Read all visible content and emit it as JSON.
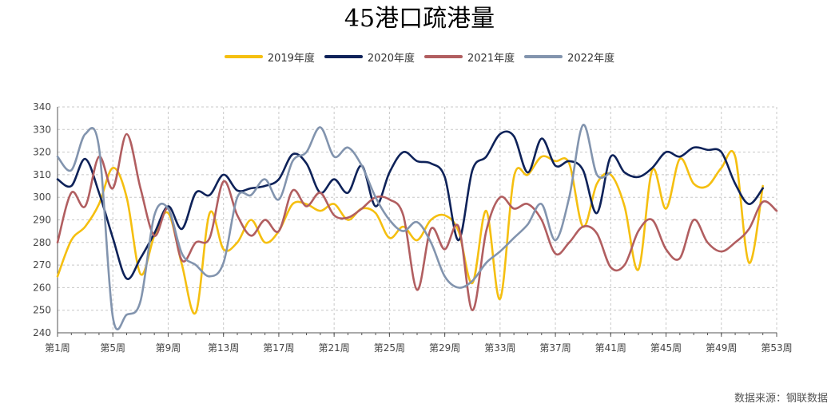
{
  "title": "45港口疏港量",
  "source": "数据来源：钢联数据",
  "colors": {
    "2019": "#F5BF10",
    "2020": "#0E2259",
    "2021": "#B15E60",
    "2022": "#8294AE",
    "grid": "#C8C8C8",
    "axis": "#555555"
  },
  "chart_data": {
    "type": "line",
    "title": "45港口疏港量",
    "xlabel": "",
    "ylabel": "",
    "ylim": [
      240,
      340
    ],
    "yticks": [
      240,
      250,
      260,
      270,
      280,
      290,
      300,
      310,
      320,
      330,
      340
    ],
    "xlim": [
      1,
      53
    ],
    "xtick_labels": [
      "第1周",
      "第5周",
      "第9周",
      "第13周",
      "第17周",
      "第21周",
      "第25周",
      "第29周",
      "第33周",
      "第37周",
      "第41周",
      "第45周",
      "第49周",
      "第53周"
    ],
    "xticks": [
      1,
      5,
      9,
      13,
      17,
      21,
      25,
      29,
      33,
      37,
      41,
      45,
      49,
      53
    ],
    "grid": true,
    "legend_position": "top-center",
    "series": [
      {
        "name": "2019年度",
        "color": "#F5BF10",
        "x": [
          1,
          2,
          3,
          4,
          5,
          6,
          7,
          8,
          9,
          10,
          11,
          12,
          13,
          14,
          15,
          16,
          17,
          18,
          19,
          20,
          21,
          22,
          23,
          24,
          25,
          26,
          27,
          28,
          29,
          30,
          31,
          32,
          33,
          34,
          35,
          36,
          37,
          38,
          39,
          40,
          41,
          42,
          43,
          44,
          45,
          46,
          47,
          48,
          49,
          50,
          51,
          52
        ],
        "values": [
          265,
          281,
          287,
          297,
          313,
          300,
          266,
          283,
          293,
          270,
          249,
          293,
          277,
          280,
          290,
          280,
          285,
          297,
          297,
          294,
          297,
          290,
          295,
          293,
          282,
          287,
          281,
          290,
          292,
          285,
          262,
          294,
          255,
          309,
          310,
          318,
          316,
          315,
          287,
          306,
          310,
          296,
          268,
          312,
          295,
          317,
          306,
          305,
          313,
          318,
          271,
          305
        ]
      },
      {
        "name": "2020年度",
        "color": "#0E2259",
        "x": [
          1,
          2,
          3,
          4,
          5,
          6,
          7,
          8,
          9,
          10,
          11,
          12,
          13,
          14,
          15,
          16,
          17,
          18,
          19,
          20,
          21,
          22,
          23,
          24,
          25,
          26,
          27,
          28,
          29,
          30,
          31,
          32,
          33,
          34,
          35,
          36,
          37,
          38,
          39,
          40,
          41,
          42,
          43,
          44,
          45,
          46,
          47,
          48,
          49,
          50,
          51,
          52
        ],
        "values": [
          308,
          305,
          317,
          302,
          282,
          264,
          273,
          284,
          296,
          286,
          302,
          301,
          310,
          303,
          304,
          305,
          308,
          319,
          315,
          302,
          308,
          302,
          314,
          296,
          311,
          320,
          316,
          315,
          309,
          281,
          312,
          318,
          328,
          327,
          311,
          326,
          314,
          316,
          312,
          293,
          318,
          311,
          309,
          313,
          320,
          318,
          322,
          321,
          320,
          306,
          297,
          304
        ]
      },
      {
        "name": "2021年度",
        "color": "#B15E60",
        "x": [
          1,
          2,
          3,
          4,
          5,
          6,
          7,
          8,
          9,
          10,
          11,
          12,
          13,
          14,
          15,
          16,
          17,
          18,
          19,
          20,
          21,
          22,
          23,
          24,
          25,
          26,
          27,
          28,
          29,
          30,
          31,
          32,
          33,
          34,
          35,
          36,
          37,
          38,
          39,
          40,
          41,
          42,
          43,
          44,
          45,
          46,
          47,
          48,
          49,
          50,
          51,
          52,
          53
        ],
        "values": [
          280,
          302,
          296,
          318,
          304,
          328,
          304,
          283,
          295,
          272,
          280,
          282,
          307,
          292,
          283,
          290,
          285,
          303,
          296,
          302,
          292,
          291,
          295,
          300,
          299,
          292,
          259,
          286,
          277,
          287,
          250,
          285,
          300,
          295,
          297,
          290,
          275,
          280,
          287,
          284,
          269,
          270,
          285,
          290,
          277,
          273,
          290,
          280,
          276,
          280,
          286,
          298,
          294
        ]
      },
      {
        "name": "2022年度",
        "color": "#8294AE",
        "x": [
          1,
          2,
          3,
          4,
          5,
          6,
          7,
          8,
          9,
          10,
          11,
          12,
          13,
          14,
          15,
          16,
          17,
          18,
          19,
          20,
          21,
          22,
          23,
          24,
          25,
          26,
          27,
          28,
          29,
          30,
          31,
          32,
          33,
          34,
          35,
          36,
          37,
          38,
          39,
          40,
          41
        ],
        "values": [
          318,
          312,
          328,
          322,
          247,
          248,
          254,
          292,
          295,
          275,
          270,
          265,
          271,
          300,
          301,
          308,
          299,
          316,
          320,
          331,
          318,
          322,
          314,
          300,
          290,
          285,
          289,
          280,
          265,
          260,
          263,
          271,
          276,
          282,
          288,
          297,
          281,
          300,
          332,
          310,
          311
        ]
      }
    ]
  }
}
